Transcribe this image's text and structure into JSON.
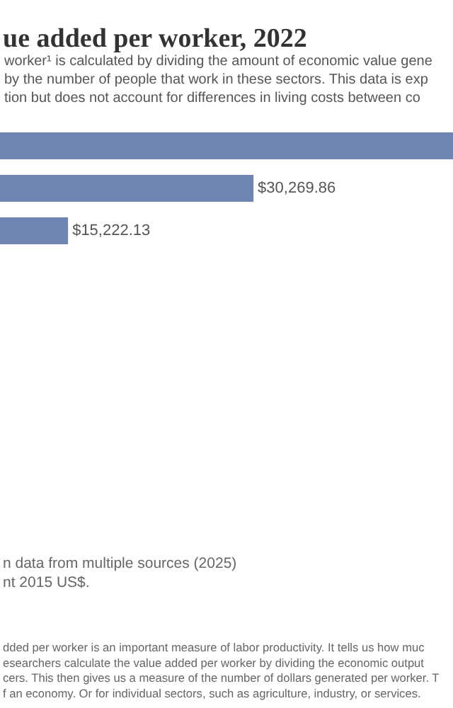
{
  "chart_data": {
    "type": "bar",
    "orientation": "horizontal",
    "title": "ue added per worker, 2022",
    "subtitle": "worker¹ is calculated by dividing the amount of economic value gene\nby the number of people that work in these sectors. This data is exp\ntion but does not account for differences in living costs between co",
    "categories": [
      null,
      null,
      null
    ],
    "values": [
      46460,
      30269.86,
      15222.13
    ],
    "value_labels": [
      null,
      "$30,269.86",
      "$15,222.13"
    ],
    "color": "#6d85b0",
    "xlim": [
      9700,
      46460
    ],
    "tick_labels": false,
    "legend": false,
    "annotations": [
      "n data from multiple sources (2025)\nnt 2015 US$.",
      "dded per worker is an important measure of labor productivity. It tells us how muc\nesearchers calculate the value added per worker by dividing the economic output\ncers. This then gives us a measure of the number of dollars generated per worker. T\nf an economy. Or for individual sectors, such as agriculture, industry, or services."
    ]
  }
}
